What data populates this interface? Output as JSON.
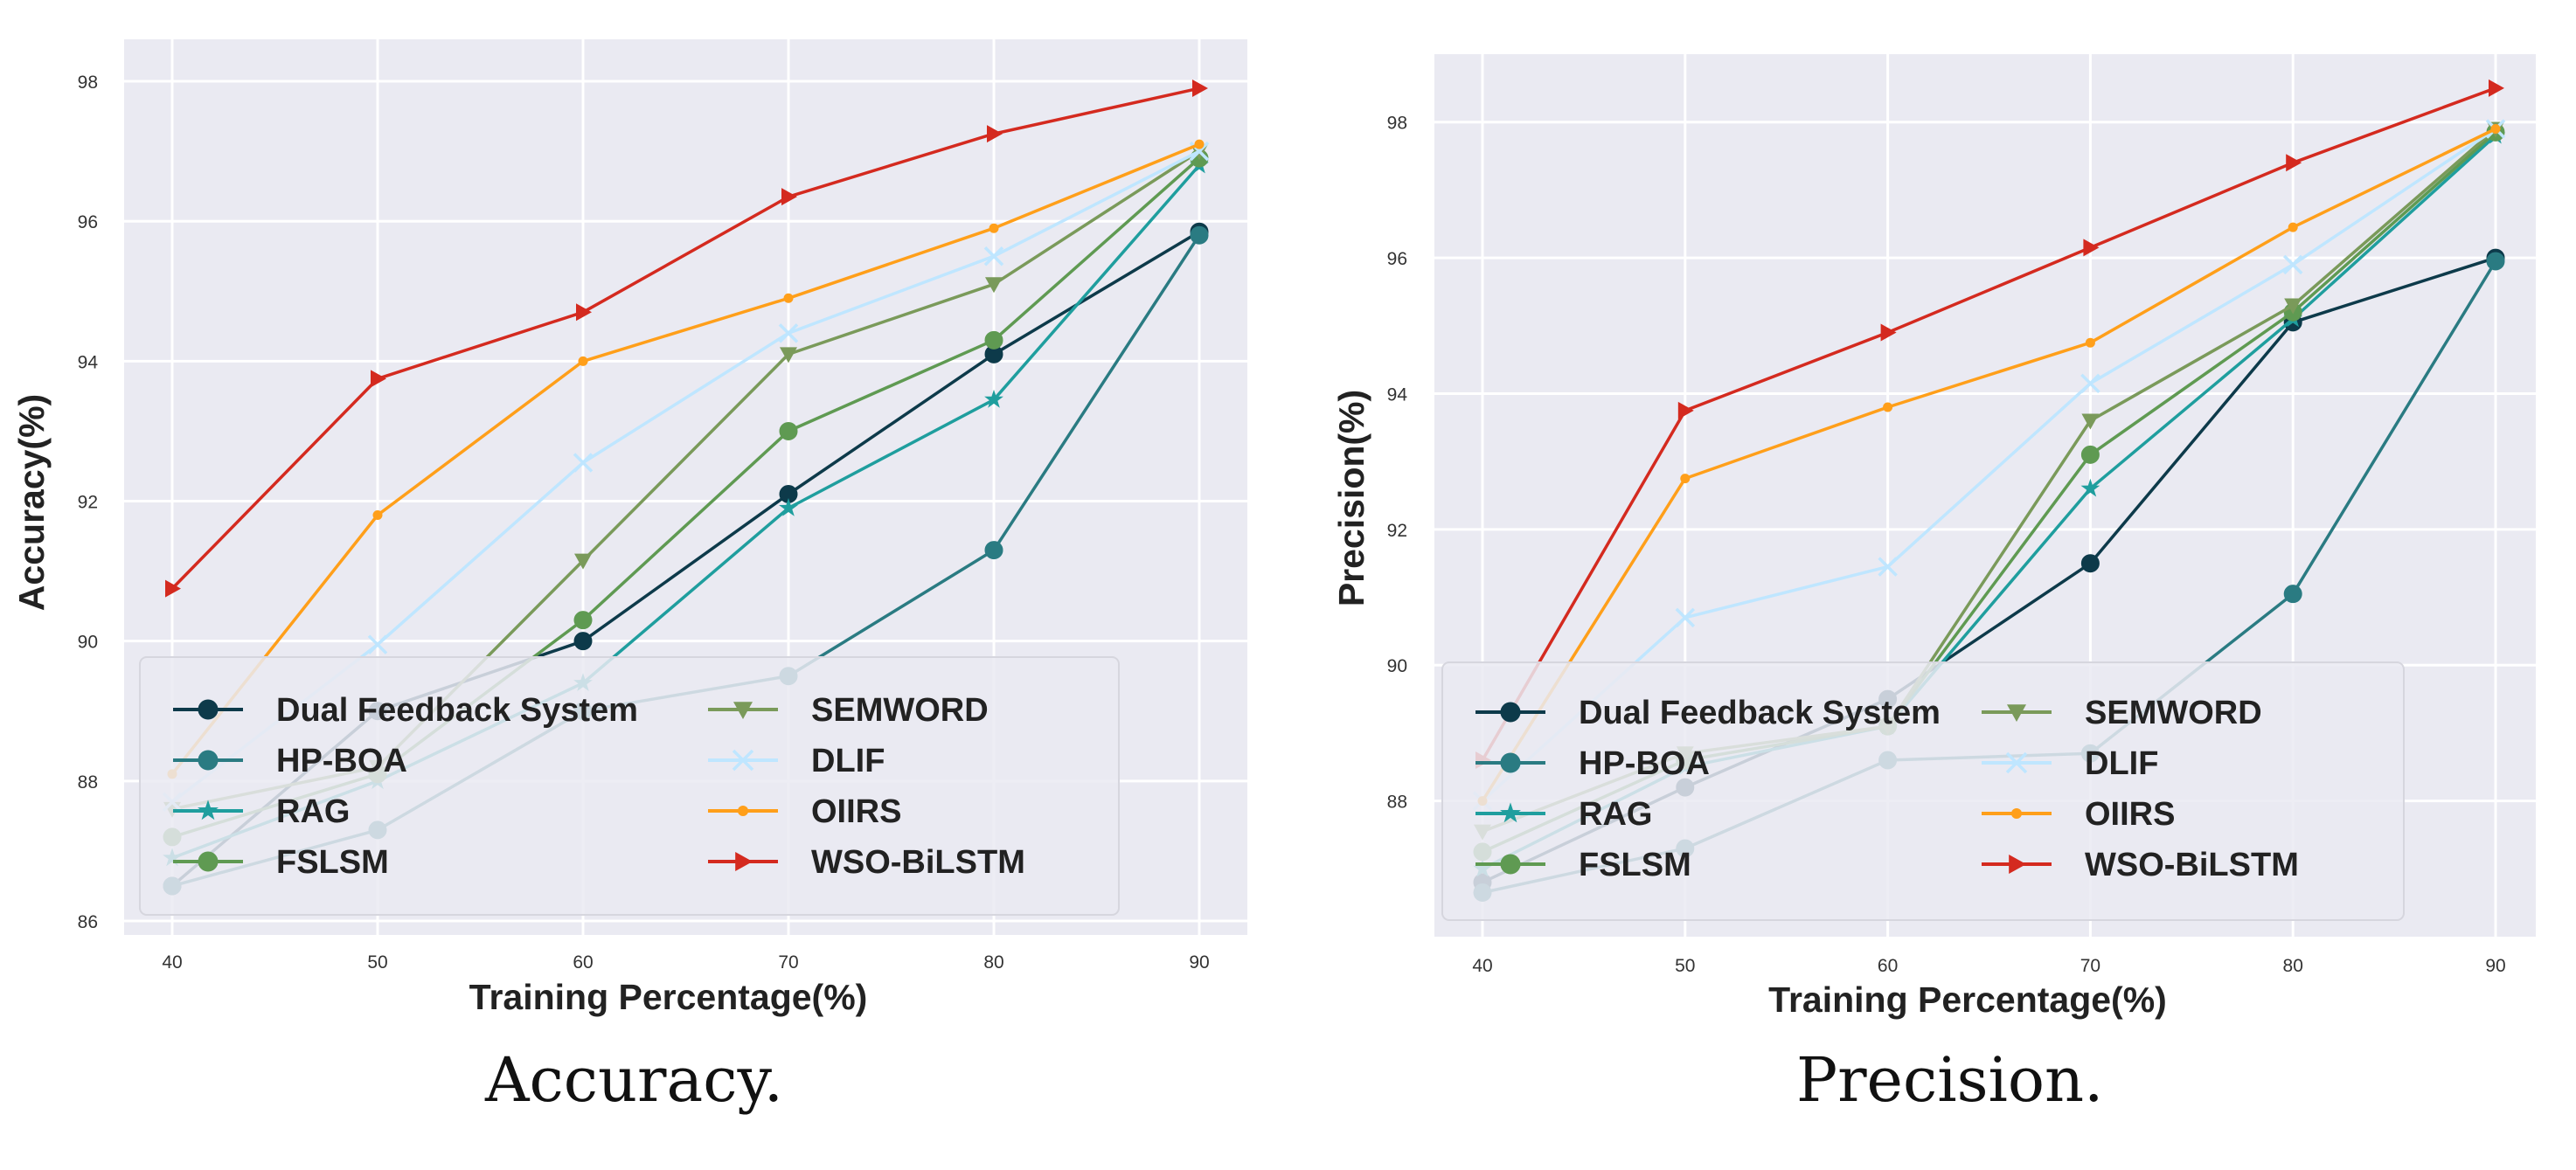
{
  "chart_data": [
    {
      "type": "line",
      "caption": "Accuracy.",
      "xlabel": "Training Percentage(%)",
      "ylabel": "Accuracy(%)",
      "x": [
        40,
        50,
        60,
        70,
        80,
        90
      ],
      "xticks": [
        "40",
        "50",
        "60",
        "70",
        "80",
        "90"
      ],
      "ylim": [
        85.8,
        98.6
      ],
      "yticks": [
        86,
        88,
        90,
        92,
        94,
        96,
        98
      ],
      "ytick_labels": [
        "86",
        "88",
        "90",
        "92",
        "94",
        "96",
        "98"
      ],
      "grid": true,
      "legend": "lower-right",
      "series": [
        {
          "name": "Dual Feedback System",
          "color": "#0d3a4a",
          "marker": "circle",
          "values": [
            86.5,
            89.0,
            90.0,
            92.1,
            94.1,
            95.85
          ]
        },
        {
          "name": "HP-BOA",
          "color": "#2a7b82",
          "marker": "circle",
          "values": [
            86.5,
            87.3,
            89.0,
            89.5,
            91.3,
            95.8
          ]
        },
        {
          "name": "RAG",
          "color": "#1f9e9e",
          "marker": "star",
          "values": [
            86.9,
            88.0,
            89.4,
            91.9,
            93.45,
            96.8
          ]
        },
        {
          "name": "FSLSM",
          "color": "#5f9a52",
          "marker": "circle",
          "values": [
            87.2,
            88.1,
            90.3,
            93.0,
            94.3,
            96.9
          ]
        },
        {
          "name": "SEMWORD",
          "color": "#7a9a5a",
          "marker": "triangle-down",
          "values": [
            87.6,
            88.2,
            91.15,
            94.1,
            95.1,
            97.0
          ]
        },
        {
          "name": "DLIF",
          "color": "#bfe6ff",
          "marker": "x",
          "values": [
            87.7,
            89.95,
            92.55,
            94.4,
            95.5,
            97.0
          ]
        },
        {
          "name": "OIIRS",
          "color": "#ff9f1a",
          "marker": "dot",
          "values": [
            88.1,
            91.8,
            94.0,
            94.9,
            95.9,
            97.1
          ]
        },
        {
          "name": "WSO-BiLSTM",
          "color": "#d42a1f",
          "marker": "triangle-right",
          "values": [
            90.75,
            93.75,
            94.7,
            96.35,
            97.25,
            97.9
          ]
        }
      ]
    },
    {
      "type": "line",
      "caption": "Precision.",
      "xlabel": "Training Percentage(%)",
      "ylabel": "Precision(%)",
      "x": [
        40,
        50,
        60,
        70,
        80,
        90
      ],
      "xticks": [
        "40",
        "50",
        "60",
        "70",
        "80",
        "90"
      ],
      "ylim": [
        86.0,
        99.0
      ],
      "yticks": [
        88,
        90,
        92,
        94,
        96,
        98
      ],
      "ytick_labels": [
        "88",
        "90",
        "92",
        "94",
        "96",
        "98"
      ],
      "grid": true,
      "legend": "lower-right",
      "series": [
        {
          "name": "Dual Feedback System",
          "color": "#0d3a4a",
          "marker": "circle",
          "values": [
            86.8,
            88.2,
            89.5,
            91.5,
            95.05,
            96.0
          ]
        },
        {
          "name": "HP-BOA",
          "color": "#2a7b82",
          "marker": "circle",
          "values": [
            86.65,
            87.3,
            88.6,
            88.7,
            91.05,
            95.95
          ]
        },
        {
          "name": "RAG",
          "color": "#1f9e9e",
          "marker": "star",
          "values": [
            87.0,
            88.5,
            89.1,
            92.6,
            95.1,
            97.8
          ]
        },
        {
          "name": "FSLSM",
          "color": "#5f9a52",
          "marker": "circle",
          "values": [
            87.25,
            88.6,
            89.1,
            93.1,
            95.2,
            97.85
          ]
        },
        {
          "name": "SEMWORD",
          "color": "#7a9a5a",
          "marker": "triangle-down",
          "values": [
            87.55,
            88.7,
            89.1,
            93.6,
            95.3,
            97.9
          ]
        },
        {
          "name": "DLIF",
          "color": "#bfe6ff",
          "marker": "x",
          "values": [
            88.0,
            90.7,
            91.45,
            94.15,
            95.9,
            97.9
          ]
        },
        {
          "name": "OIIRS",
          "color": "#ff9f1a",
          "marker": "dot",
          "values": [
            88.0,
            92.75,
            93.8,
            94.75,
            96.45,
            97.9
          ]
        },
        {
          "name": "WSO-BiLSTM",
          "color": "#d42a1f",
          "marker": "triangle-right",
          "values": [
            88.6,
            93.75,
            94.9,
            96.15,
            97.4,
            98.5
          ]
        }
      ]
    }
  ]
}
